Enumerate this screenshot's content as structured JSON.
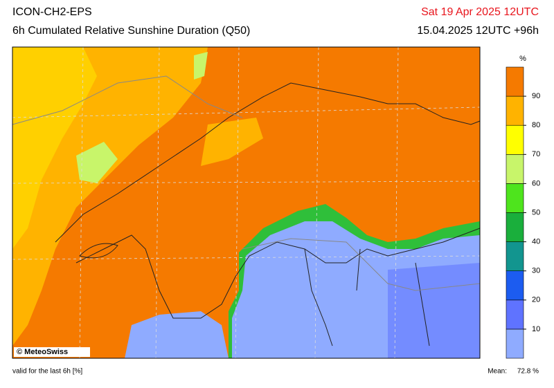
{
  "header": {
    "title": "ICON-CH2-EPS",
    "subtitle": "6h Cumulated Relative Sunshine Duration (Q50)",
    "valid_date": "Sat 19 Apr 2025 12UTC",
    "run": "15.04.2025 12UTC +96h"
  },
  "colorbar": {
    "unit": "%",
    "lim": [
      0,
      100
    ],
    "ticks": [
      10,
      20,
      30,
      40,
      50,
      60,
      70,
      80,
      90
    ],
    "colors": [
      "#8fabff",
      "#5f73ff",
      "#1c5cf0",
      "#12958f",
      "#1aaf3c",
      "#4ee41d",
      "#c8f56a",
      "#ffff00",
      "#ffb300",
      "#f57a00"
    ]
  },
  "map": {
    "copyright": "© MeteoSwiss"
  },
  "footer": {
    "note": "valid for the last 6h [%]",
    "mean_label": "Mean:",
    "mean": {
      "value": 72.8,
      "label": "72.8 %"
    }
  }
}
